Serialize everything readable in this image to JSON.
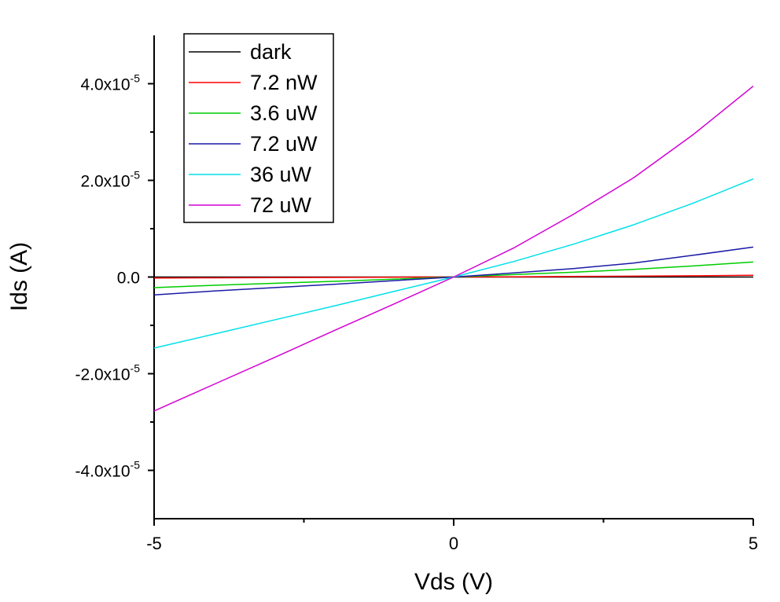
{
  "chart_data": {
    "type": "line",
    "title": "",
    "xlabel": "Vds (V)",
    "ylabel": "Ids (A)",
    "xlim": [
      -5,
      5
    ],
    "ylim": [
      -5e-05,
      5e-05
    ],
    "x_ticks": [
      {
        "value": -5,
        "label": "-5"
      },
      {
        "value": 0,
        "label": "0"
      },
      {
        "value": 5,
        "label": "5"
      }
    ],
    "x_minor_ticks": [
      -2.5,
      2.5
    ],
    "y_ticks": [
      {
        "value": 4e-05,
        "mantissa": "4.0x10",
        "exponent": "-5"
      },
      {
        "value": 2e-05,
        "mantissa": "2.0x10",
        "exponent": "-5"
      },
      {
        "value": 0,
        "mantissa": "0.0",
        "exponent": ""
      },
      {
        "value": -2e-05,
        "mantissa": "-2.0x10",
        "exponent": "-5"
      },
      {
        "value": -4e-05,
        "mantissa": "-4.0x10",
        "exponent": "-5"
      }
    ],
    "y_minor_ticks": [
      3e-05,
      1e-05,
      -1e-05,
      -3e-05
    ],
    "grid": false,
    "legend_position": "top-left",
    "x": [
      -5,
      -4,
      -3,
      -2,
      -1,
      0,
      1,
      2,
      3,
      4,
      5
    ],
    "series": [
      {
        "name": "dark",
        "color": "#000000",
        "values": [
          0,
          0,
          0,
          0,
          0,
          0,
          0,
          0,
          0,
          0,
          0
        ]
      },
      {
        "name": "7.2 nW",
        "color": "#ff0000",
        "values": [
          -2e-07,
          -1.6e-07,
          -1.2e-07,
          -8e-08,
          -4e-08,
          0,
          5e-08,
          1.1e-07,
          1.8e-07,
          2.6e-07,
          3.5e-07
        ]
      },
      {
        "name": "3.6 uW",
        "color": "#00cc00",
        "values": [
          -2.2e-06,
          -1.7e-06,
          -1.3e-06,
          -9e-07,
          -4.5e-07,
          0,
          5e-07,
          1e-06,
          1.6e-06,
          2.3e-06,
          3.1e-06
        ]
      },
      {
        "name": "7.2 uW",
        "color": "#1a1aa6",
        "values": [
          -3.7e-06,
          -2.9e-06,
          -2.2e-06,
          -1.5e-06,
          -7.5e-07,
          0,
          8.5e-07,
          1.75e-06,
          2.9e-06,
          4.5e-06,
          6.2e-06
        ]
      },
      {
        "name": "36 uW",
        "color": "#00e0e8",
        "values": [
          -1.47e-05,
          -1.18e-05,
          -8.9e-06,
          -6e-06,
          -3e-06,
          0,
          3.2e-06,
          6.8e-06,
          1.08e-05,
          1.53e-05,
          2.03e-05
        ]
      },
      {
        "name": "72 uW",
        "color": "#d400d4",
        "values": [
          -2.77e-05,
          -2.22e-05,
          -1.67e-05,
          -1.11e-05,
          -5.6e-06,
          0,
          6e-06,
          1.3e-05,
          2.05e-05,
          2.95e-05,
          3.95e-05
        ]
      }
    ]
  }
}
